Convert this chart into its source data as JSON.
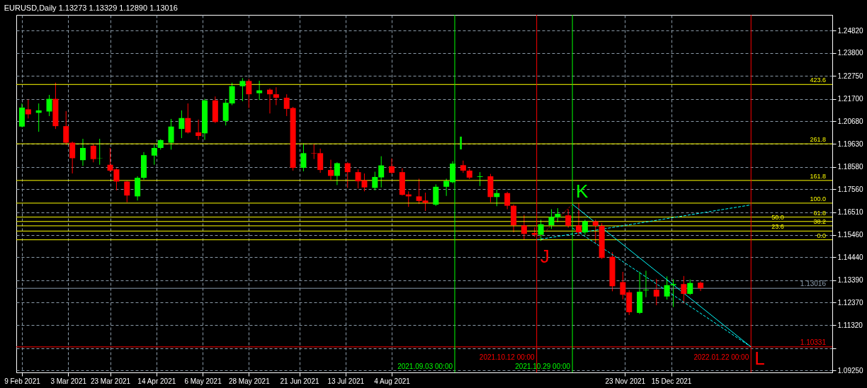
{
  "chart_data": {
    "type": "candlestick",
    "title": "EURUSD,Daily  1.13273 1.13329 1.12890 1.13016",
    "x": [
      "2021-02-09",
      "2021-02-12",
      "2021-02-17",
      "2021-02-22",
      "2021-02-25",
      "2021-03-02",
      "2021-03-05",
      "2021-03-10",
      "2021-03-15",
      "2021-03-18",
      "2021-03-23",
      "2021-03-26",
      "2021-03-31",
      "2021-04-05",
      "2021-04-08",
      "2021-04-13",
      "2021-04-16",
      "2021-04-21",
      "2021-04-26",
      "2021-04-29",
      "2021-05-04",
      "2021-05-07",
      "2021-05-12",
      "2021-05-17",
      "2021-05-20",
      "2021-05-25",
      "2021-05-28",
      "2021-06-02",
      "2021-06-07",
      "2021-06-10",
      "2021-06-15",
      "2021-06-18",
      "2021-06-23",
      "2021-06-28",
      "2021-07-01",
      "2021-07-06",
      "2021-07-09",
      "2021-07-14",
      "2021-07-19",
      "2021-07-22",
      "2021-07-27",
      "2021-07-30",
      "2021-08-04",
      "2021-08-09",
      "2021-08-12",
      "2021-08-17",
      "2021-08-20",
      "2021-08-25",
      "2021-08-30",
      "2021-09-02",
      "2021-09-07",
      "2021-09-10",
      "2021-09-15",
      "2021-09-20",
      "2021-09-23",
      "2021-09-28",
      "2021-10-01",
      "2021-10-06",
      "2021-10-11",
      "2021-10-14",
      "2021-10-19",
      "2021-10-22",
      "2021-10-27",
      "2021-11-01",
      "2021-11-04",
      "2021-11-09",
      "2021-11-12",
      "2021-11-17",
      "2021-11-22",
      "2021-11-25",
      "2021-11-30",
      "2021-12-03",
      "2021-12-08",
      "2021-12-13",
      "2021-12-16",
      "2021-12-21",
      "2021-12-24",
      "2021-12-29"
    ],
    "ohlc": [
      [
        1.2043,
        1.2149,
        1.204,
        1.213
      ],
      [
        1.2122,
        1.2167,
        1.208,
        1.2099
      ],
      [
        1.2106,
        1.2149,
        1.2019,
        1.2117
      ],
      [
        1.2112,
        1.2188,
        1.2091,
        1.217
      ],
      [
        1.217,
        1.2244,
        1.2032,
        1.2045
      ],
      [
        1.2045,
        1.2114,
        1.1958,
        1.1969
      ],
      [
        1.1969,
        1.1974,
        1.1828,
        1.1898
      ],
      [
        1.1889,
        1.1987,
        1.1863,
        1.1945
      ],
      [
        1.1955,
        1.1963,
        1.1879,
        1.1894
      ],
      [
        1.1898,
        1.1987,
        1.1868,
        1.1899
      ],
      [
        1.1868,
        1.1945,
        1.1834,
        1.1841
      ],
      [
        1.1847,
        1.1852,
        1.1751,
        1.1791
      ],
      [
        1.1791,
        1.1794,
        1.1696,
        1.1727
      ],
      [
        1.1723,
        1.1815,
        1.1704,
        1.1808
      ],
      [
        1.1808,
        1.1926,
        1.18,
        1.1912
      ],
      [
        1.191,
        1.1963,
        1.1868,
        1.1945
      ],
      [
        1.1945,
        1.1985,
        1.1937,
        1.1981
      ],
      [
        1.1969,
        1.2078,
        1.1937,
        1.2043
      ],
      [
        1.2032,
        1.2117,
        1.199,
        1.2082
      ],
      [
        1.2082,
        1.2149,
        1.2011,
        1.2016
      ],
      [
        1.2016,
        1.2075,
        1.1982,
        1.2
      ],
      [
        1.2012,
        1.217,
        1.1982,
        1.2163
      ],
      [
        1.2163,
        1.2181,
        1.2059,
        1.2064
      ],
      [
        1.2069,
        1.217,
        1.2048,
        1.2152
      ],
      [
        1.2149,
        1.2244,
        1.2141,
        1.2228
      ],
      [
        1.2228,
        1.2265,
        1.2159,
        1.2252
      ],
      [
        1.2252,
        1.2262,
        1.2128,
        1.2191
      ],
      [
        1.2196,
        1.2253,
        1.2165,
        1.2209
      ],
      [
        1.2212,
        1.2218,
        1.2103,
        1.2191
      ],
      [
        1.2191,
        1.2223,
        1.2141,
        1.2175
      ],
      [
        1.2175,
        1.2191,
        1.2091,
        1.2124
      ],
      [
        1.2128,
        1.2133,
        1.1841,
        1.1854
      ],
      [
        1.1854,
        1.1967,
        1.1838,
        1.1921
      ],
      [
        1.1921,
        1.1963,
        1.1894,
        1.1919
      ],
      [
        1.1921,
        1.1942,
        1.1831,
        1.1844
      ],
      [
        1.1844,
        1.1891,
        1.1799,
        1.1817
      ],
      [
        1.1817,
        1.1879,
        1.1775,
        1.1875
      ],
      [
        1.1875,
        1.1879,
        1.1762,
        1.1834
      ],
      [
        1.1834,
        1.1847,
        1.1759,
        1.1792
      ],
      [
        1.1797,
        1.1828,
        1.1746,
        1.1764
      ],
      [
        1.1762,
        1.1836,
        1.1751,
        1.1812
      ],
      [
        1.181,
        1.1907,
        1.1764,
        1.1865
      ],
      [
        1.1861,
        1.1897,
        1.1826,
        1.1831
      ],
      [
        1.1834,
        1.1852,
        1.1727,
        1.173
      ],
      [
        1.1732,
        1.1746,
        1.1675,
        1.1723
      ],
      [
        1.1723,
        1.1804,
        1.1688,
        1.1702
      ],
      [
        1.1704,
        1.174,
        1.1656,
        1.1693
      ],
      [
        1.1685,
        1.1778,
        1.1679,
        1.1767
      ],
      [
        1.1767,
        1.1804,
        1.1725,
        1.1794
      ],
      [
        1.1788,
        1.1884,
        1.1783,
        1.1873
      ],
      [
        1.1866,
        1.1887,
        1.1831,
        1.1841
      ],
      [
        1.1841,
        1.185,
        1.1802,
        1.1809
      ],
      [
        1.1812,
        1.1834,
        1.177,
        1.1815
      ],
      [
        1.1815,
        1.1826,
        1.1696,
        1.172
      ],
      [
        1.172,
        1.1754,
        1.1678,
        1.1738
      ],
      [
        1.1738,
        1.1744,
        1.1664,
        1.168
      ],
      [
        1.168,
        1.1686,
        1.1558,
        1.159
      ],
      [
        1.159,
        1.1638,
        1.1523,
        1.1551
      ],
      [
        1.1555,
        1.1581,
        1.1537,
        1.1547
      ],
      [
        1.1547,
        1.1616,
        1.1519,
        1.1595
      ],
      [
        1.159,
        1.1664,
        1.1574,
        1.1629
      ],
      [
        1.1627,
        1.1669,
        1.1605,
        1.1643
      ],
      [
        1.1636,
        1.1664,
        1.1579,
        1.1588
      ],
      [
        1.159,
        1.1691,
        1.1547,
        1.1558
      ],
      [
        1.1558,
        1.1616,
        1.1547,
        1.1609
      ],
      [
        1.1609,
        1.1616,
        1.1508,
        1.1588
      ],
      [
        1.1588,
        1.16,
        1.1436,
        1.1441
      ],
      [
        1.1446,
        1.1467,
        1.1288,
        1.1311
      ],
      [
        1.133,
        1.1377,
        1.1251,
        1.1272
      ],
      [
        1.1283,
        1.1293,
        1.1179,
        1.1192
      ],
      [
        1.1189,
        1.1378,
        1.1184,
        1.1286
      ],
      [
        1.1292,
        1.1382,
        1.1261,
        1.1295
      ],
      [
        1.1295,
        1.1345,
        1.1224,
        1.1264
      ],
      [
        1.1264,
        1.1356,
        1.125,
        1.1316
      ],
      [
        1.1316,
        1.1343,
        1.1216,
        1.1321
      ],
      [
        1.1321,
        1.1358,
        1.1232,
        1.1276
      ],
      [
        1.1276,
        1.1342,
        1.1271,
        1.1326
      ],
      [
        1.13273,
        1.13329,
        1.1289,
        1.13016
      ]
    ],
    "colors": [
      "#00ff00",
      "#ff0000",
      "#00ff00",
      "#00ff00",
      "#ff0000",
      "#ff0000",
      "#ff0000",
      "#00ff00",
      "#ff0000",
      "#00ff00",
      "#ff0000",
      "#ff0000",
      "#ff0000",
      "#00ff00",
      "#00ff00",
      "#00ff00",
      "#00ff00",
      "#00ff00",
      "#00ff00",
      "#ff0000",
      "#ff0000",
      "#00ff00",
      "#ff0000",
      "#00ff00",
      "#00ff00",
      "#00ff00",
      "#ff0000",
      "#00ff00",
      "#ff0000",
      "#ff0000",
      "#ff0000",
      "#ff0000",
      "#00ff00",
      "#ff0000",
      "#ff0000",
      "#ff0000",
      "#00ff00",
      "#ff0000",
      "#ff0000",
      "#ff0000",
      "#00ff00",
      "#00ff00",
      "#ff0000",
      "#ff0000",
      "#ff0000",
      "#ff0000",
      "#ff0000",
      "#00ff00",
      "#00ff00",
      "#00ff00",
      "#ff0000",
      "#ff0000",
      "#00ff00",
      "#ff0000",
      "#00ff00",
      "#ff0000",
      "#ff0000",
      "#ff0000",
      "#ff0000",
      "#00ff00",
      "#00ff00",
      "#00ff00",
      "#ff0000",
      "#ff0000",
      "#00ff00",
      "#ff0000",
      "#ff0000",
      "#ff0000",
      "#ff0000",
      "#ff0000",
      "#00ff00",
      "#00ff00",
      "#ff0000",
      "#00ff00",
      "#00ff00",
      "#ff0000",
      "#00ff00",
      "#ff0000"
    ],
    "xlim": [
      "2021-02-08",
      "2022-02-28"
    ],
    "ylim": [
      1.0916,
      1.2555
    ],
    "xticks": [
      {
        "value": "2021-02-09",
        "label": "9 Feb 2021"
      },
      {
        "value": "2021-03-03",
        "label": "3 Mar 2021"
      },
      {
        "value": "2021-03-23",
        "label": "23 Mar 2021"
      },
      {
        "value": "2021-04-14",
        "label": "14 Apr 2021"
      },
      {
        "value": "2021-05-06",
        "label": "6 May 2021"
      },
      {
        "value": "2021-05-28",
        "label": "28 May 2021"
      },
      {
        "value": "2021-06-21",
        "label": "21 Jun 2021"
      },
      {
        "value": "2021-07-13",
        "label": "13 Jul 2021"
      },
      {
        "value": "2021-08-04",
        "label": "4 Aug 2021"
      },
      {
        "value": "2021-11-23",
        "label": "23 Nov 2021"
      },
      {
        "value": "2021-12-15",
        "label": "15 Dec 2021"
      }
    ],
    "yticks": [
      {
        "value": 1.2482,
        "label": "1.24820"
      },
      {
        "value": 1.238,
        "label": "1.23800"
      },
      {
        "value": 1.2275,
        "label": "1.22750"
      },
      {
        "value": 1.217,
        "label": "1.21700"
      },
      {
        "value": 1.2068,
        "label": "1.20680"
      },
      {
        "value": 1.1963,
        "label": "1.19630"
      },
      {
        "value": 1.1858,
        "label": "1.18580"
      },
      {
        "value": 1.1756,
        "label": "1.17560"
      },
      {
        "value": 1.1651,
        "label": "1.16510"
      },
      {
        "value": 1.1546,
        "label": "1.15460"
      },
      {
        "value": 1.1444,
        "label": "1.14440"
      },
      {
        "value": 1.1339,
        "label": "1.13390"
      },
      {
        "value": 1.1237,
        "label": "1.12370"
      },
      {
        "value": 1.1132,
        "label": "1.11320"
      },
      {
        "value": 1.1027,
        "label": null
      },
      {
        "value": 1.0925,
        "label": "1.09250"
      }
    ],
    "grid": true,
    "ref_lines": [
      {
        "axis": "y",
        "value": 1.2236,
        "color": "#ffff00"
      },
      {
        "axis": "y",
        "value": 1.1964,
        "color": "#ffff00"
      },
      {
        "axis": "y",
        "value": 1.1796,
        "color": "#ffff00"
      },
      {
        "axis": "y",
        "value": 1.1692,
        "color": "#ffff00"
      },
      {
        "axis": "y",
        "value": 1.1628,
        "color": "#ffff00"
      },
      {
        "axis": "y",
        "value": 1.1608,
        "color": "#ffff00"
      },
      {
        "axis": "y",
        "value": 1.1588,
        "color": "#ffff00"
      },
      {
        "axis": "y",
        "value": 1.1564,
        "color": "#ffff00"
      },
      {
        "axis": "y",
        "value": 1.1524,
        "color": "#ffff00"
      },
      {
        "axis": "y",
        "value": 1.13016,
        "label": "1.13016",
        "color": "#8899aa"
      },
      {
        "axis": "y",
        "value": 1.10331,
        "label": "1.10331",
        "color": "#ff0000"
      },
      {
        "axis": "x",
        "value": "2021-09-03",
        "label": "2021.09.03 00:00",
        "color": "#00ff00"
      },
      {
        "axis": "x",
        "value": "2021-10-12",
        "label": "2021.10.12 00:00",
        "color": "#ff0000"
      },
      {
        "axis": "x",
        "value": "2021-10-29",
        "label": "2021.10.29 00:00",
        "color": "#00ff00"
      },
      {
        "axis": "x",
        "value": "2022-01-22",
        "label": "2022.01.22 00:00",
        "color": "#ff0000"
      }
    ],
    "series": [
      {
        "type": "line",
        "color": "#00ffff",
        "line_style": "solid",
        "x": [
          "2021-10-29",
          "2022-01-22"
        ],
        "values": [
          1.1687,
          1.1033
        ]
      },
      {
        "type": "line",
        "color": "#00ffff",
        "line_style": "dashed",
        "x": [
          "2021-10-12",
          "2022-01-22"
        ],
        "values": [
          1.1524,
          1.1684
        ]
      },
      {
        "type": "line",
        "color": "#00ffff",
        "line_style": "dashed",
        "x": [
          "2021-10-29",
          "2022-01-22"
        ],
        "values": [
          1.1578,
          1.1033
        ]
      },
      {
        "type": "line",
        "color": "#ff0000",
        "line_style": "dotted",
        "x": [
          "2021-10-12",
          "2021-10-29"
        ],
        "values": [
          1.1524,
          1.1687
        ]
      }
    ],
    "annotations": [
      {
        "text": "I",
        "x": "2021-09-03",
        "y": 1.1963
      },
      {
        "text": "J",
        "x": "2021-10-12",
        "y": 1.1444
      },
      {
        "text": "K",
        "x": "2021-10-29",
        "y": 1.1742
      },
      {
        "text": "L",
        "x": "2022-01-22",
        "y": 1.0979
      },
      {
        "text": "423.6",
        "x": "2022-02-28",
        "y": 1.2236
      },
      {
        "text": "261.8",
        "x": "2022-02-28",
        "y": 1.1964
      },
      {
        "text": "161.8",
        "x": "2022-02-28",
        "y": 1.1796
      },
      {
        "text": "100.0",
        "x": "2022-02-28",
        "y": 1.1692
      },
      {
        "text": "61.8",
        "x": "2022-02-28",
        "y": 1.1628
      },
      {
        "text": "50.0",
        "x": "2022-02-08",
        "y": 1.1608
      },
      {
        "text": "38.2",
        "x": "2022-02-28",
        "y": 1.1588
      },
      {
        "text": "23.6",
        "x": "2022-02-08",
        "y": 1.1564
      },
      {
        "text": "0.0",
        "x": "2022-02-28",
        "y": 1.1524
      }
    ]
  }
}
